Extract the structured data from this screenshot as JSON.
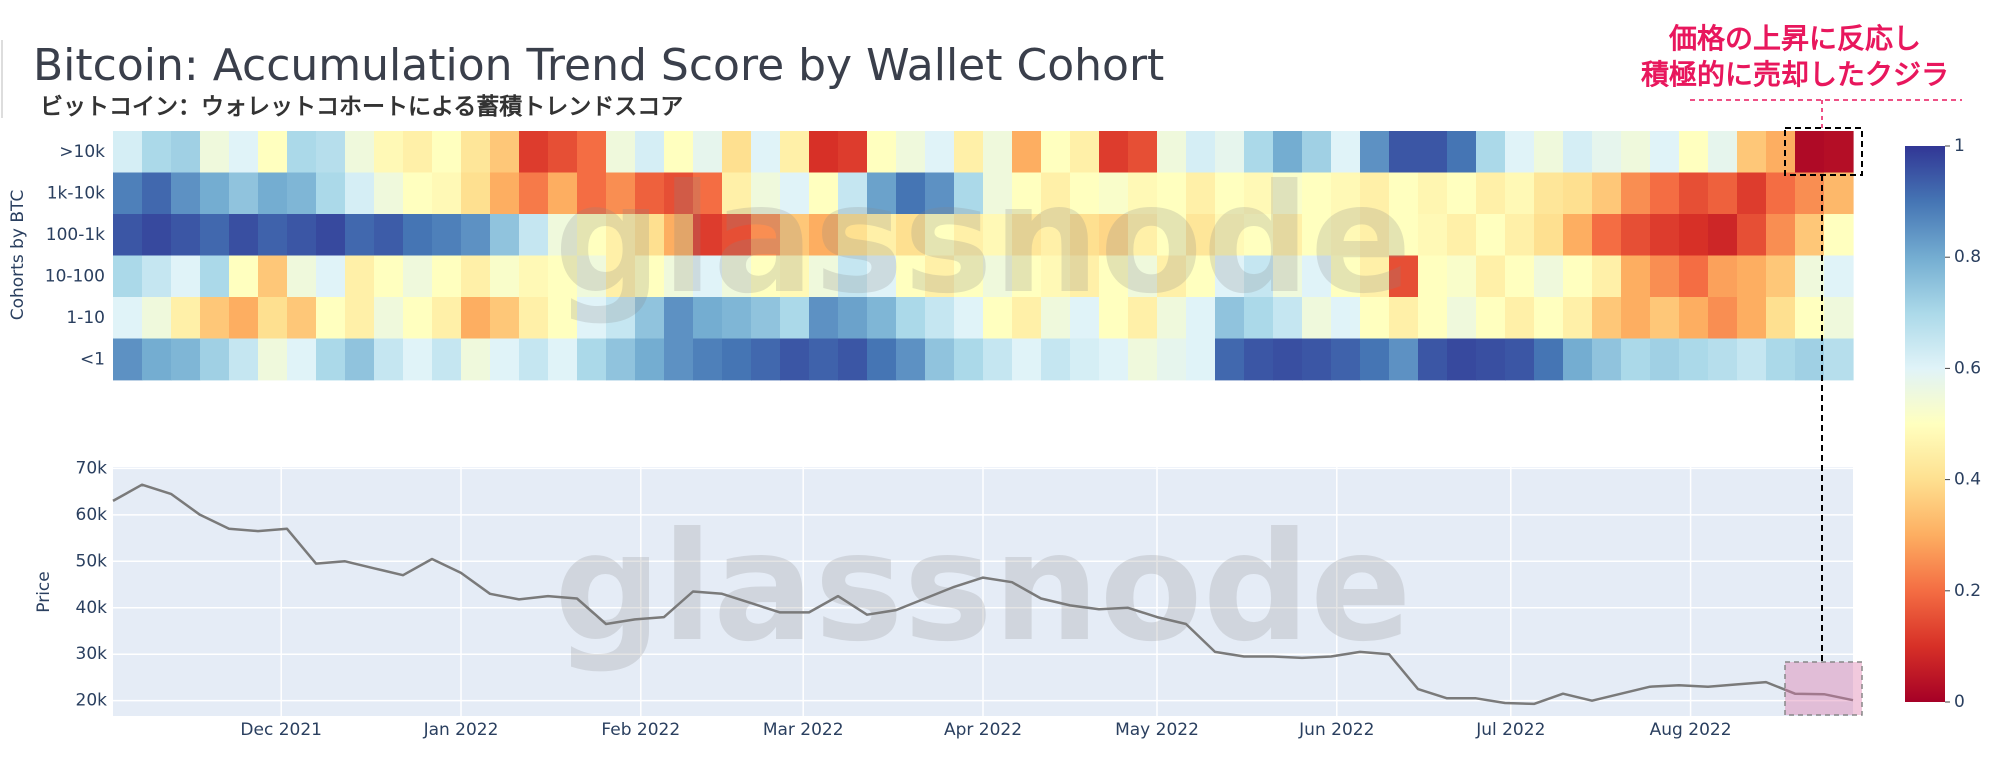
{
  "chart_data": [
    {
      "type": "heatmap",
      "title": "Bitcoin: Accumulation Trend Score by Wallet Cohort",
      "subtitle": "ビットコイン：ウォレットコホートによる蓄積トレンドスコア",
      "ylabel": "Cohorts by BTC",
      "annotation": [
        "価格の上昇に反応し",
        "積極的に売却したクジラ"
      ],
      "watermark": "glassnode",
      "xlim": [
        0,
        300
      ],
      "x": [
        0,
        5,
        10,
        15,
        20,
        25,
        30,
        35,
        40,
        45,
        50,
        55,
        60,
        65,
        70,
        75,
        80,
        85,
        90,
        95,
        100,
        105,
        110,
        115,
        120,
        125,
        130,
        135,
        140,
        145,
        150,
        155,
        160,
        165,
        170,
        175,
        180,
        185,
        190,
        195,
        200,
        205,
        210,
        215,
        220,
        225,
        230,
        235,
        240,
        245,
        250,
        255,
        260,
        265,
        270,
        275,
        280,
        285,
        290,
        295
      ],
      "zlim": [
        0,
        1
      ],
      "zticks": [
        0,
        0.2,
        0.4,
        0.6,
        0.8,
        1
      ],
      "colorscale": [
        [
          0,
          "#a50026"
        ],
        [
          0.1,
          "#d73027"
        ],
        [
          0.2,
          "#f46d43"
        ],
        [
          0.3,
          "#fdae61"
        ],
        [
          0.4,
          "#fee090"
        ],
        [
          0.5,
          "#ffffbf"
        ],
        [
          0.6,
          "#e0f3f8"
        ],
        [
          0.7,
          "#abd9e9"
        ],
        [
          0.8,
          "#74add1"
        ],
        [
          0.9,
          "#4575b4"
        ],
        [
          1,
          "#313695"
        ]
      ],
      "series": [
        {
          "name": ">10k",
          "values": [
            0.62,
            0.7,
            0.72,
            0.55,
            0.6,
            0.5,
            0.7,
            0.68,
            0.55,
            0.48,
            0.45,
            0.5,
            0.42,
            0.35,
            0.12,
            0.15,
            0.2,
            0.55,
            0.62,
            0.5,
            0.58,
            0.4,
            0.6,
            0.45,
            0.1,
            0.12,
            0.5,
            0.55,
            0.6,
            0.45,
            0.55,
            0.3,
            0.5,
            0.45,
            0.12,
            0.15,
            0.55,
            0.62,
            0.58,
            0.7,
            0.8,
            0.72,
            0.6,
            0.85,
            0.95,
            0.95,
            0.9,
            0.7,
            0.6,
            0.55,
            0.62,
            0.58,
            0.55,
            0.6,
            0.5,
            0.58,
            0.35,
            0.3,
            0.02,
            0.03
          ]
        },
        {
          "name": "1k-10k",
          "values": [
            0.88,
            0.92,
            0.85,
            0.8,
            0.75,
            0.8,
            0.78,
            0.7,
            0.62,
            0.55,
            0.5,
            0.48,
            0.4,
            0.3,
            0.22,
            0.3,
            0.2,
            0.25,
            0.18,
            0.15,
            0.2,
            0.45,
            0.55,
            0.6,
            0.5,
            0.65,
            0.82,
            0.9,
            0.85,
            0.7,
            0.55,
            0.5,
            0.45,
            0.5,
            0.52,
            0.48,
            0.5,
            0.45,
            0.5,
            0.48,
            0.52,
            0.5,
            0.48,
            0.45,
            0.5,
            0.47,
            0.5,
            0.45,
            0.48,
            0.42,
            0.4,
            0.35,
            0.25,
            0.2,
            0.15,
            0.18,
            0.12,
            0.2,
            0.25,
            0.32
          ]
        },
        {
          "name": "100-1k",
          "values": [
            0.95,
            0.97,
            0.95,
            0.92,
            0.96,
            0.93,
            0.95,
            0.97,
            0.92,
            0.94,
            0.9,
            0.88,
            0.85,
            0.75,
            0.65,
            0.55,
            0.5,
            0.45,
            0.4,
            0.3,
            0.12,
            0.15,
            0.25,
            0.35,
            0.3,
            0.4,
            0.45,
            0.4,
            0.5,
            0.45,
            0.48,
            0.42,
            0.45,
            0.4,
            0.38,
            0.45,
            0.5,
            0.42,
            0.48,
            0.5,
            0.45,
            0.5,
            0.48,
            0.45,
            0.5,
            0.48,
            0.45,
            0.5,
            0.45,
            0.4,
            0.3,
            0.2,
            0.15,
            0.12,
            0.1,
            0.08,
            0.15,
            0.25,
            0.35,
            0.5
          ]
        },
        {
          "name": "10-100",
          "values": [
            0.7,
            0.65,
            0.6,
            0.7,
            0.5,
            0.35,
            0.55,
            0.6,
            0.45,
            0.5,
            0.55,
            0.5,
            0.45,
            0.52,
            0.48,
            0.5,
            0.55,
            0.45,
            0.5,
            0.55,
            0.6,
            0.55,
            0.5,
            0.48,
            0.55,
            0.65,
            0.6,
            0.5,
            0.45,
            0.5,
            0.55,
            0.5,
            0.48,
            0.45,
            0.5,
            0.55,
            0.45,
            0.5,
            0.6,
            0.65,
            0.55,
            0.6,
            0.5,
            0.45,
            0.15,
            0.5,
            0.52,
            0.45,
            0.5,
            0.55,
            0.5,
            0.45,
            0.3,
            0.25,
            0.2,
            0.28,
            0.3,
            0.35,
            0.55,
            0.6
          ]
        },
        {
          "name": "1-10",
          "values": [
            0.6,
            0.55,
            0.45,
            0.35,
            0.3,
            0.4,
            0.35,
            0.5,
            0.45,
            0.55,
            0.5,
            0.45,
            0.3,
            0.35,
            0.45,
            0.5,
            0.6,
            0.65,
            0.75,
            0.85,
            0.8,
            0.78,
            0.75,
            0.7,
            0.85,
            0.82,
            0.78,
            0.7,
            0.65,
            0.6,
            0.5,
            0.45,
            0.55,
            0.6,
            0.5,
            0.45,
            0.55,
            0.6,
            0.75,
            0.7,
            0.65,
            0.55,
            0.6,
            0.5,
            0.45,
            0.5,
            0.55,
            0.5,
            0.45,
            0.5,
            0.45,
            0.35,
            0.3,
            0.35,
            0.3,
            0.25,
            0.3,
            0.4,
            0.5,
            0.55
          ]
        },
        {
          "name": "<1",
          "values": [
            0.85,
            0.8,
            0.78,
            0.72,
            0.65,
            0.55,
            0.6,
            0.7,
            0.75,
            0.65,
            0.6,
            0.65,
            0.55,
            0.6,
            0.65,
            0.6,
            0.7,
            0.75,
            0.8,
            0.85,
            0.88,
            0.9,
            0.92,
            0.95,
            0.93,
            0.95,
            0.9,
            0.85,
            0.75,
            0.7,
            0.65,
            0.6,
            0.65,
            0.62,
            0.6,
            0.55,
            0.58,
            0.6,
            0.92,
            0.95,
            0.96,
            0.95,
            0.93,
            0.9,
            0.85,
            0.95,
            0.97,
            0.96,
            0.95,
            0.9,
            0.8,
            0.75,
            0.7,
            0.72,
            0.7,
            0.68,
            0.65,
            0.7,
            0.72,
            0.68
          ]
        }
      ]
    },
    {
      "type": "line",
      "ylabel": "Price",
      "watermark": "glassnode",
      "color": "#7a7a7a",
      "grid": true,
      "xlim": [
        0,
        300
      ],
      "ylim": [
        16700,
        70300
      ],
      "xticks": [
        {
          "value": 29,
          "label": "Dec 2021"
        },
        {
          "value": 60,
          "label": "Jan 2022"
        },
        {
          "value": 91,
          "label": "Feb 2022"
        },
        {
          "value": 119,
          "label": "Mar 2022"
        },
        {
          "value": 150,
          "label": "Apr 2022"
        },
        {
          "value": 180,
          "label": "May 2022"
        },
        {
          "value": 211,
          "label": "Jun 2022"
        },
        {
          "value": 241,
          "label": "Jul 2022"
        },
        {
          "value": 272,
          "label": "Aug 2022"
        }
      ],
      "yticks": [
        {
          "value": 20000,
          "label": "20k"
        },
        {
          "value": 30000,
          "label": "30k"
        },
        {
          "value": 40000,
          "label": "40k"
        },
        {
          "value": 50000,
          "label": "50k"
        },
        {
          "value": 60000,
          "label": "60k"
        },
        {
          "value": 70000,
          "label": "70k"
        }
      ],
      "x": [
        0,
        5,
        10,
        15,
        20,
        25,
        30,
        35,
        40,
        45,
        50,
        55,
        60,
        65,
        70,
        75,
        80,
        85,
        90,
        95,
        100,
        105,
        110,
        115,
        120,
        125,
        130,
        135,
        140,
        145,
        150,
        155,
        160,
        165,
        170,
        175,
        180,
        185,
        190,
        195,
        200,
        205,
        210,
        215,
        220,
        225,
        230,
        235,
        240,
        245,
        250,
        255,
        260,
        265,
        270,
        275,
        280,
        285,
        290,
        295,
        300
      ],
      "values": [
        63000,
        66500,
        64500,
        60000,
        57000,
        56500,
        57000,
        49500,
        50000,
        48500,
        47000,
        50500,
        47500,
        43000,
        41800,
        42500,
        42000,
        36500,
        37500,
        38000,
        43500,
        43000,
        41000,
        39000,
        39000,
        42500,
        38500,
        39500,
        42000,
        44500,
        46500,
        45500,
        42000,
        40500,
        39700,
        40000,
        38000,
        36500,
        30500,
        29500,
        29500,
        29200,
        29500,
        30500,
        30000,
        22500,
        20500,
        20500,
        19500,
        19300,
        21500,
        20000,
        21500,
        23000,
        23300,
        23000,
        23500,
        24000,
        21500,
        21400,
        20100
      ]
    }
  ]
}
